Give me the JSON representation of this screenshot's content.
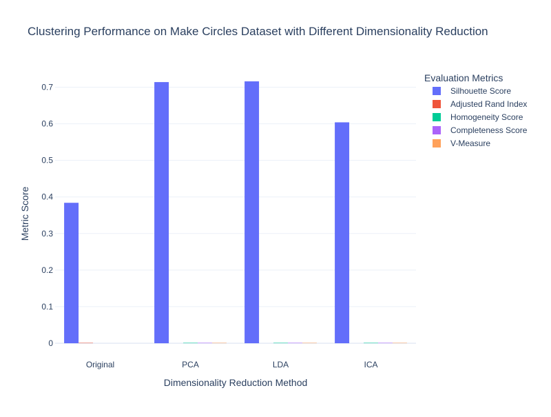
{
  "chart_data": {
    "type": "bar",
    "title": "Clustering Performance on Make Circles Dataset with Different Dimensionality Reduction",
    "xlabel": "Dimensionality Reduction Method",
    "ylabel": "Metric Score",
    "categories": [
      "Original",
      "PCA",
      "LDA",
      "ICA"
    ],
    "ylim": [
      0,
      0.75
    ],
    "yticks": [
      0,
      0.1,
      0.2,
      0.3,
      0.4,
      0.5,
      0.6,
      0.7
    ],
    "ytick_labels": [
      "0",
      "0.1",
      "0.2",
      "0.3",
      "0.4",
      "0.5",
      "0.6",
      "0.7"
    ],
    "grid": true,
    "legend": {
      "title": "Evaluation Metrics",
      "placement": "right"
    },
    "series": [
      {
        "name": "Silhouette Score",
        "color": "#636efa",
        "values": [
          0.384,
          0.714,
          0.716,
          0.604
        ]
      },
      {
        "name": "Adjusted Rand Index",
        "color": "#EF553B",
        "values": [
          0.001,
          0.0,
          0.0,
          0.0
        ]
      },
      {
        "name": "Homogeneity Score",
        "color": "#00cc96",
        "values": [
          0.0,
          0.001,
          0.001,
          0.001
        ]
      },
      {
        "name": "Completeness Score",
        "color": "#ab63fa",
        "values": [
          0.0,
          0.001,
          0.001,
          0.001
        ]
      },
      {
        "name": "V-Measure",
        "color": "#FFA15A",
        "values": [
          0.0,
          0.001,
          0.001,
          0.001
        ]
      }
    ]
  }
}
